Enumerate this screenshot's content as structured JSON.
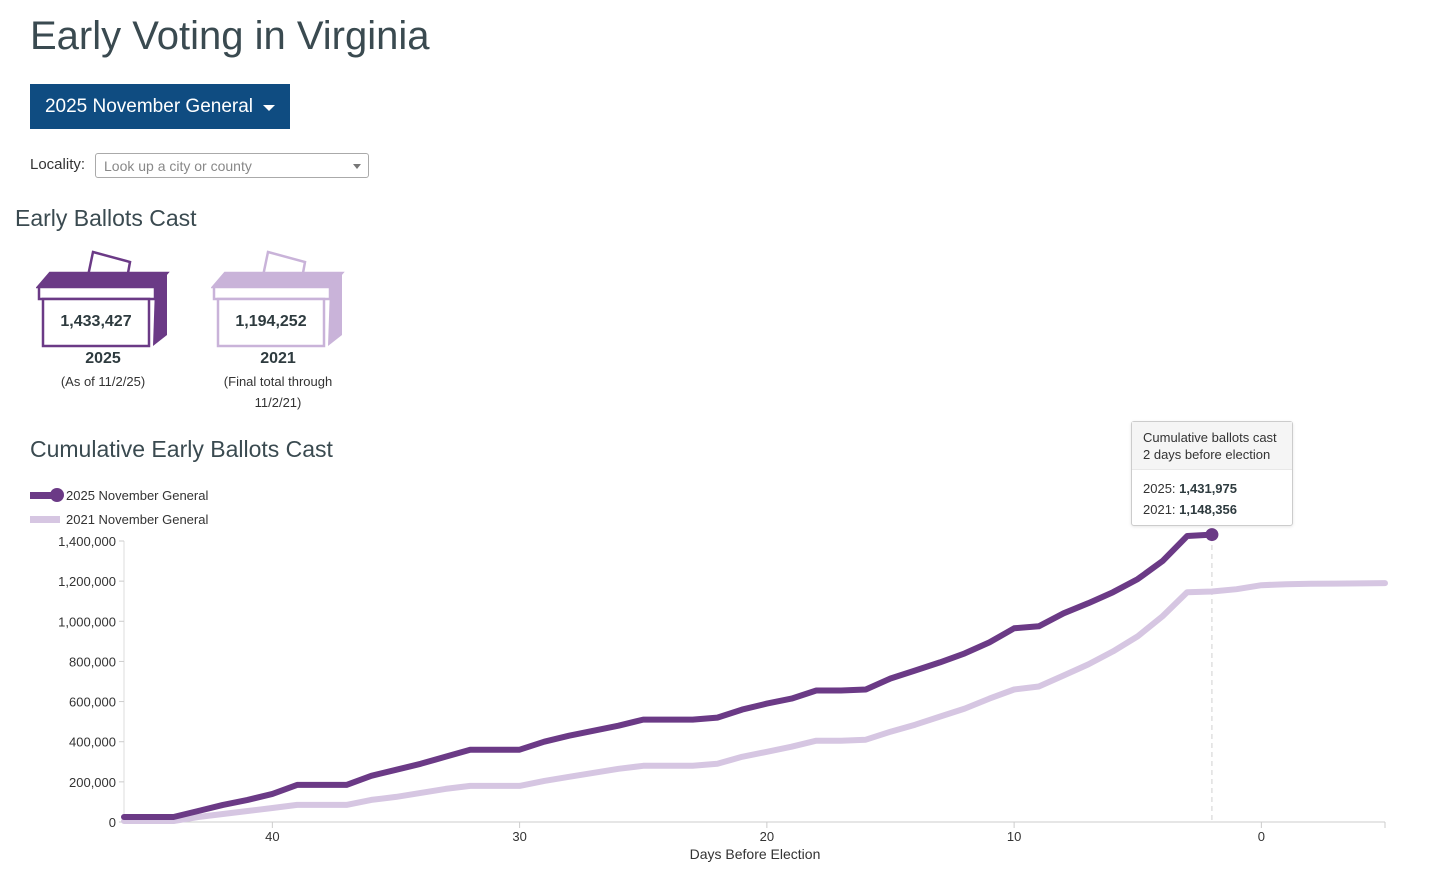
{
  "page": {
    "title": "Early Voting in Virginia",
    "election_selector": "2025 November General",
    "locality_label": "Locality:",
    "locality_placeholder": "Look up a city or county",
    "section_title": "Early Ballots Cast"
  },
  "ballot_boxes": [
    {
      "count": "1,433,427",
      "year": "2025",
      "note_line1": "(As of 11/2/25)",
      "note_line2": "",
      "color": "#6b3a86",
      "side_color": "#6b3a86"
    },
    {
      "count": "1,194,252",
      "year": "2021",
      "note_line1": "(Final total through",
      "note_line2": "11/2/21)",
      "color": "#c9b3d9",
      "side_color": "#c9b3d9"
    }
  ],
  "tooltip": {
    "line1": "Cumulative ballots cast",
    "line2": "2 days before election",
    "row1_label": "2025: ",
    "row1_value": "1,431,975",
    "row2_label": "2021: ",
    "row2_value": "1,148,356"
  },
  "chart_data": {
    "type": "line",
    "title": "Cumulative Early Ballots Cast",
    "xlabel": "Days Before Election",
    "ylabel": "",
    "xlim": [
      46,
      -5
    ],
    "ylim": [
      0,
      1400000
    ],
    "x_ticks": [
      40,
      30,
      20,
      10,
      0
    ],
    "x_tick_labels": [
      "40",
      "30",
      "20",
      "10",
      "0"
    ],
    "y_ticks": [
      0,
      200000,
      400000,
      600000,
      800000,
      1000000,
      1200000,
      1400000
    ],
    "y_tick_labels": [
      "0",
      "200,000",
      "400,000",
      "600,000",
      "800,000",
      "1,000,000",
      "1,200,000",
      "1,400,000"
    ],
    "legend_position": "top-left",
    "hover_x": 2,
    "series": [
      {
        "name": "2025 November General",
        "color": "#6b3a86",
        "x": [
          46,
          44,
          43,
          42,
          41,
          40,
          39,
          38,
          37,
          36,
          35,
          34,
          33,
          32,
          31,
          30,
          29,
          28,
          27,
          26,
          25,
          24,
          23,
          22,
          21,
          20,
          19,
          18,
          17,
          16,
          15,
          14,
          13,
          12,
          11,
          10,
          9,
          8,
          7,
          6,
          5,
          4,
          3,
          2
        ],
        "values": [
          25000,
          25000,
          55000,
          85000,
          110000,
          140000,
          185000,
          185000,
          185000,
          230000,
          260000,
          290000,
          325000,
          360000,
          360000,
          360000,
          400000,
          430000,
          455000,
          480000,
          510000,
          510000,
          510000,
          520000,
          560000,
          590000,
          615000,
          655000,
          655000,
          660000,
          715000,
          755000,
          795000,
          840000,
          895000,
          965000,
          975000,
          1040000,
          1090000,
          1145000,
          1210000,
          1300000,
          1425000,
          1431975
        ]
      },
      {
        "name": "2021 November General",
        "color": "#d6c6e2",
        "x": [
          46,
          44,
          43,
          42,
          41,
          40,
          39,
          38,
          37,
          36,
          35,
          34,
          33,
          32,
          31,
          30,
          29,
          28,
          27,
          26,
          25,
          24,
          23,
          22,
          21,
          20,
          19,
          18,
          17,
          16,
          15,
          14,
          13,
          12,
          11,
          10,
          9,
          8,
          7,
          6,
          5,
          4,
          3,
          2,
          1,
          0,
          -1,
          -2,
          -3,
          -4,
          -5
        ],
        "values": [
          5000,
          5000,
          25000,
          40000,
          55000,
          70000,
          85000,
          85000,
          85000,
          110000,
          125000,
          145000,
          165000,
          180000,
          180000,
          180000,
          205000,
          225000,
          245000,
          265000,
          280000,
          280000,
          280000,
          290000,
          325000,
          350000,
          375000,
          405000,
          405000,
          410000,
          450000,
          485000,
          525000,
          565000,
          615000,
          660000,
          675000,
          730000,
          785000,
          850000,
          925000,
          1025000,
          1145000,
          1148356,
          1160000,
          1180000,
          1185000,
          1187000,
          1188000,
          1189000,
          1190000
        ]
      }
    ]
  }
}
